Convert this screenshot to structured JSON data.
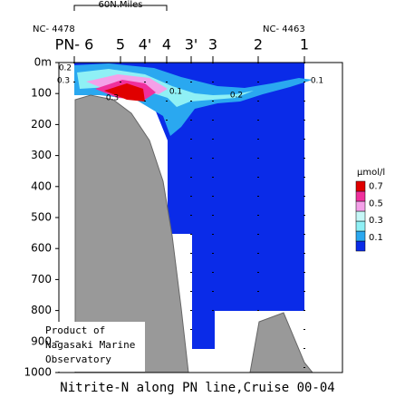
{
  "header": {
    "station_ids": [
      "NC- 4478",
      "NC- 4463"
    ],
    "scale_label": "60N.Miles"
  },
  "chart_data": {
    "type": "section",
    "title": "Nitrite-N along PN line,Cruise 00-04",
    "categories": [
      "PN- 6",
      "5",
      "4'",
      "4",
      "3'",
      "3",
      "2",
      "1"
    ],
    "ylim": [
      0,
      1000
    ],
    "yticks": [
      {
        "value": 0,
        "label": "0m"
      },
      100,
      200,
      300,
      400,
      500,
      600,
      700,
      800,
      900,
      1000
    ],
    "contour_labels": [
      0.2,
      0.3,
      0.3,
      0.1,
      0.2,
      0.1
    ],
    "legend": {
      "title": "μmol/l",
      "colors": [
        "#0a2be8",
        "#2aa8f0",
        "#8ff0f5",
        "#c6f7f7",
        "#f4a0e8",
        "#f0309c",
        "#e00000"
      ],
      "ticks": [
        0.1,
        0.3,
        0.5,
        0.7
      ]
    }
  },
  "footer": {
    "credit": [
      "Product of",
      "Nagasaki Marine",
      "Observatory"
    ]
  }
}
